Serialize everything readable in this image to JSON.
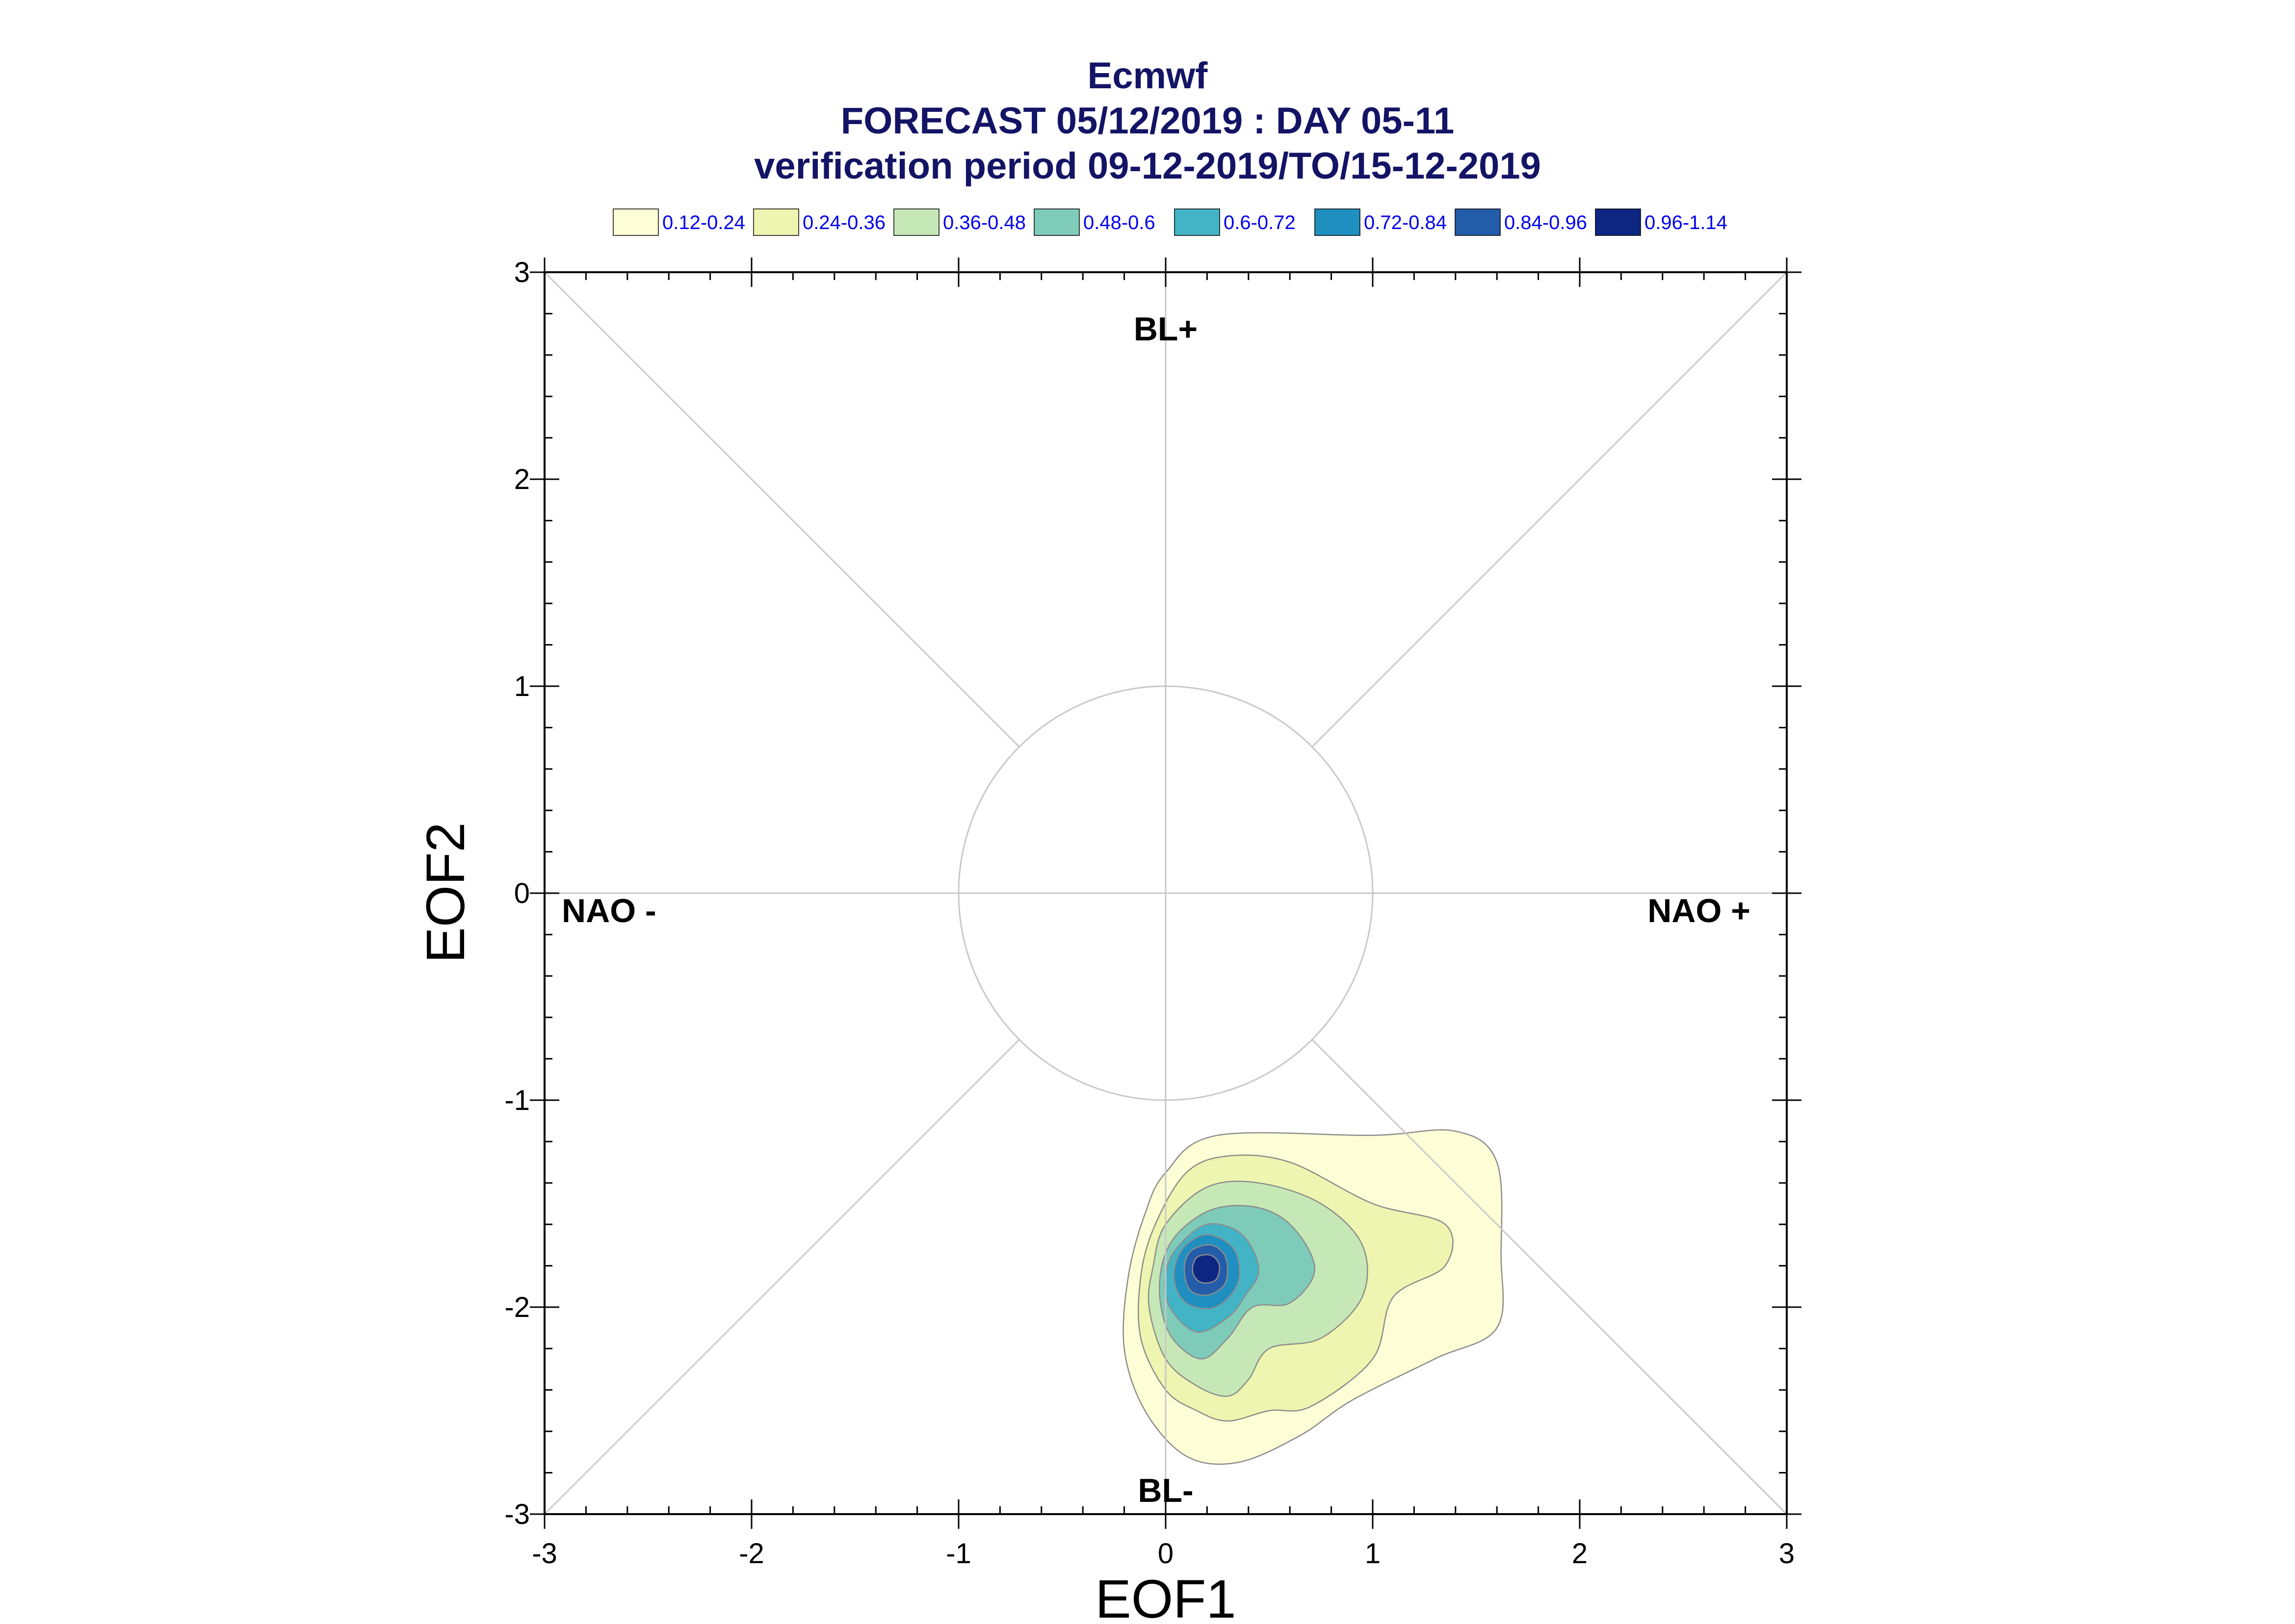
{
  "chart_data": {
    "type": "contour",
    "title": "Ecmwf",
    "subtitle": "FORECAST 05/12/2019 : DAY 05-11",
    "subtitle2": "verification period 09-12-2019/TO/15-12-2019",
    "xlabel": "EOF1",
    "ylabel": "EOF2",
    "xlim": [
      -3,
      3
    ],
    "ylim": [
      -3,
      3
    ],
    "xticks": [
      -3,
      -2,
      -1,
      0,
      1,
      2,
      3
    ],
    "yticks": [
      -3,
      -2,
      -1,
      0,
      1,
      2,
      3
    ],
    "region_labels": {
      "top": "BL+",
      "bottom": "BL-",
      "left": "NAO -",
      "right": "NAO +"
    },
    "legend": [
      {
        "label": "0.12-0.24",
        "color": "#fefed6"
      },
      {
        "label": "0.24-0.36",
        "color": "#eef5b0"
      },
      {
        "label": "0.36-0.48",
        "color": "#c6e8b6"
      },
      {
        "label": "0.48-0.6",
        "color": "#7fcbba"
      },
      {
        "label": "0.6-0.72",
        "color": "#42b4c5"
      },
      {
        "label": "0.72-0.84",
        "color": "#1f8fc0"
      },
      {
        "label": "0.84-0.96",
        "color": "#235ca8"
      },
      {
        "label": "0.96-1.14",
        "color": "#0c2682"
      }
    ],
    "contours": [
      {
        "level": "0.12-0.24",
        "points": [
          [
            -0.1,
            -1.55
          ],
          [
            0.0,
            -1.35
          ],
          [
            0.25,
            -1.17
          ],
          [
            1.0,
            -1.17
          ],
          [
            1.4,
            -1.15
          ],
          [
            1.6,
            -1.3
          ],
          [
            1.62,
            -1.75
          ],
          [
            1.6,
            -2.1
          ],
          [
            1.3,
            -2.25
          ],
          [
            0.9,
            -2.45
          ],
          [
            0.65,
            -2.62
          ],
          [
            0.35,
            -2.75
          ],
          [
            0.1,
            -2.72
          ],
          [
            -0.1,
            -2.5
          ],
          [
            -0.2,
            -2.2
          ],
          [
            -0.18,
            -1.85
          ]
        ]
      },
      {
        "level": "0.24-0.36",
        "points": [
          [
            -0.05,
            -1.6
          ],
          [
            0.1,
            -1.35
          ],
          [
            0.3,
            -1.27
          ],
          [
            0.6,
            -1.3
          ],
          [
            1.0,
            -1.5
          ],
          [
            1.35,
            -1.6
          ],
          [
            1.35,
            -1.8
          ],
          [
            1.1,
            -1.95
          ],
          [
            1.0,
            -2.25
          ],
          [
            0.7,
            -2.48
          ],
          [
            0.5,
            -2.5
          ],
          [
            0.3,
            -2.55
          ],
          [
            0.15,
            -2.5
          ],
          [
            0.0,
            -2.4
          ],
          [
            -0.12,
            -2.15
          ],
          [
            -0.12,
            -1.85
          ]
        ]
      },
      {
        "level": "0.36-0.48",
        "points": [
          [
            0.0,
            -1.6
          ],
          [
            0.2,
            -1.42
          ],
          [
            0.45,
            -1.4
          ],
          [
            0.75,
            -1.5
          ],
          [
            0.95,
            -1.7
          ],
          [
            0.95,
            -1.95
          ],
          [
            0.75,
            -2.15
          ],
          [
            0.5,
            -2.2
          ],
          [
            0.4,
            -2.35
          ],
          [
            0.3,
            -2.43
          ],
          [
            0.15,
            -2.38
          ],
          [
            0.0,
            -2.25
          ],
          [
            -0.08,
            -2.0
          ],
          [
            -0.06,
            -1.8
          ]
        ]
      },
      {
        "level": "0.48-0.6",
        "points": [
          [
            0.03,
            -1.68
          ],
          [
            0.22,
            -1.53
          ],
          [
            0.45,
            -1.52
          ],
          [
            0.62,
            -1.62
          ],
          [
            0.72,
            -1.82
          ],
          [
            0.6,
            -1.98
          ],
          [
            0.42,
            -2.0
          ],
          [
            0.3,
            -2.15
          ],
          [
            0.17,
            -2.25
          ],
          [
            0.02,
            -2.13
          ],
          [
            -0.03,
            -1.9
          ]
        ]
      },
      {
        "level": "0.6-0.72",
        "points": [
          [
            0.05,
            -1.72
          ],
          [
            0.2,
            -1.6
          ],
          [
            0.37,
            -1.65
          ],
          [
            0.45,
            -1.82
          ],
          [
            0.38,
            -1.95
          ],
          [
            0.3,
            -2.05
          ],
          [
            0.15,
            -2.12
          ],
          [
            0.02,
            -2.0
          ],
          [
            0.0,
            -1.85
          ]
        ]
      },
      {
        "level": "0.72-0.84",
        "points": [
          [
            0.08,
            -1.72
          ],
          [
            0.2,
            -1.65
          ],
          [
            0.33,
            -1.72
          ],
          [
            0.35,
            -1.88
          ],
          [
            0.24,
            -2.0
          ],
          [
            0.1,
            -1.98
          ],
          [
            0.04,
            -1.86
          ]
        ]
      },
      {
        "level": "0.84-0.96",
        "points": [
          [
            0.12,
            -1.73
          ],
          [
            0.22,
            -1.7
          ],
          [
            0.29,
            -1.76
          ],
          [
            0.29,
            -1.88
          ],
          [
            0.21,
            -1.94
          ],
          [
            0.12,
            -1.92
          ],
          [
            0.09,
            -1.82
          ]
        ]
      },
      {
        "level": "0.96-1.14",
        "points": [
          [
            0.15,
            -1.76
          ],
          [
            0.22,
            -1.75
          ],
          [
            0.26,
            -1.8
          ],
          [
            0.24,
            -1.87
          ],
          [
            0.17,
            -1.88
          ],
          [
            0.13,
            -1.83
          ]
        ]
      }
    ]
  }
}
